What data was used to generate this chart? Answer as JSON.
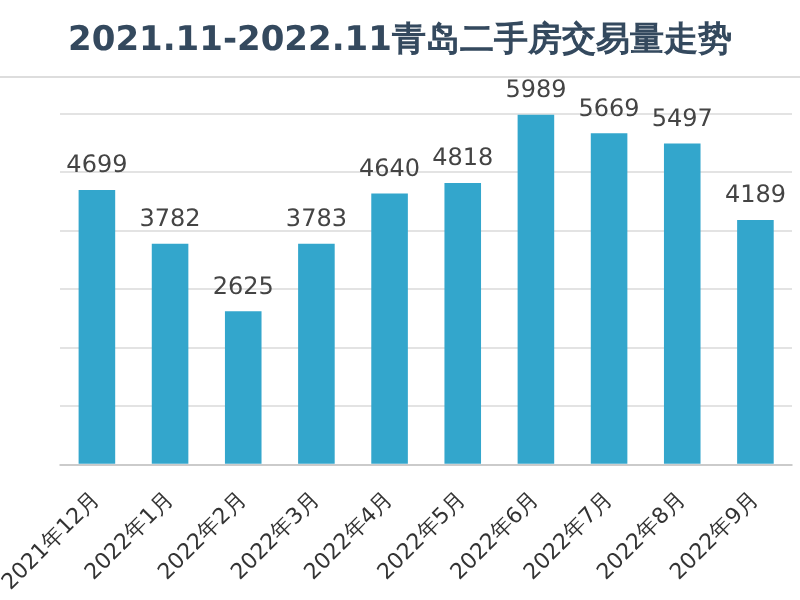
{
  "chart_data": {
    "type": "bar",
    "title": "2021.11-2022.11青岛二手房交易量走势",
    "categories": [
      "2021年12月",
      "2022年1月",
      "2022年2月",
      "2022年3月",
      "2022年4月",
      "2022年5月",
      "2022年6月",
      "2022年7月",
      "2022年8月",
      "2022年9月"
    ],
    "values": [
      4699,
      3782,
      2625,
      3783,
      4640,
      4818,
      5989,
      5669,
      5497,
      4189
    ],
    "color": "#33a6cc",
    "data_labels": true,
    "grid": "y",
    "tick_labels": "x",
    "ylim": [
      0,
      6000
    ],
    "yticks": [
      {
        "value": 0,
        "label": null
      },
      {
        "value": 1000,
        "label": null
      },
      {
        "value": 2000,
        "label": null
      },
      {
        "value": 3000,
        "label": null
      },
      {
        "value": 4000,
        "label": null
      },
      {
        "value": 5000,
        "label": null
      },
      {
        "value": 6000,
        "label": null
      }
    ]
  }
}
